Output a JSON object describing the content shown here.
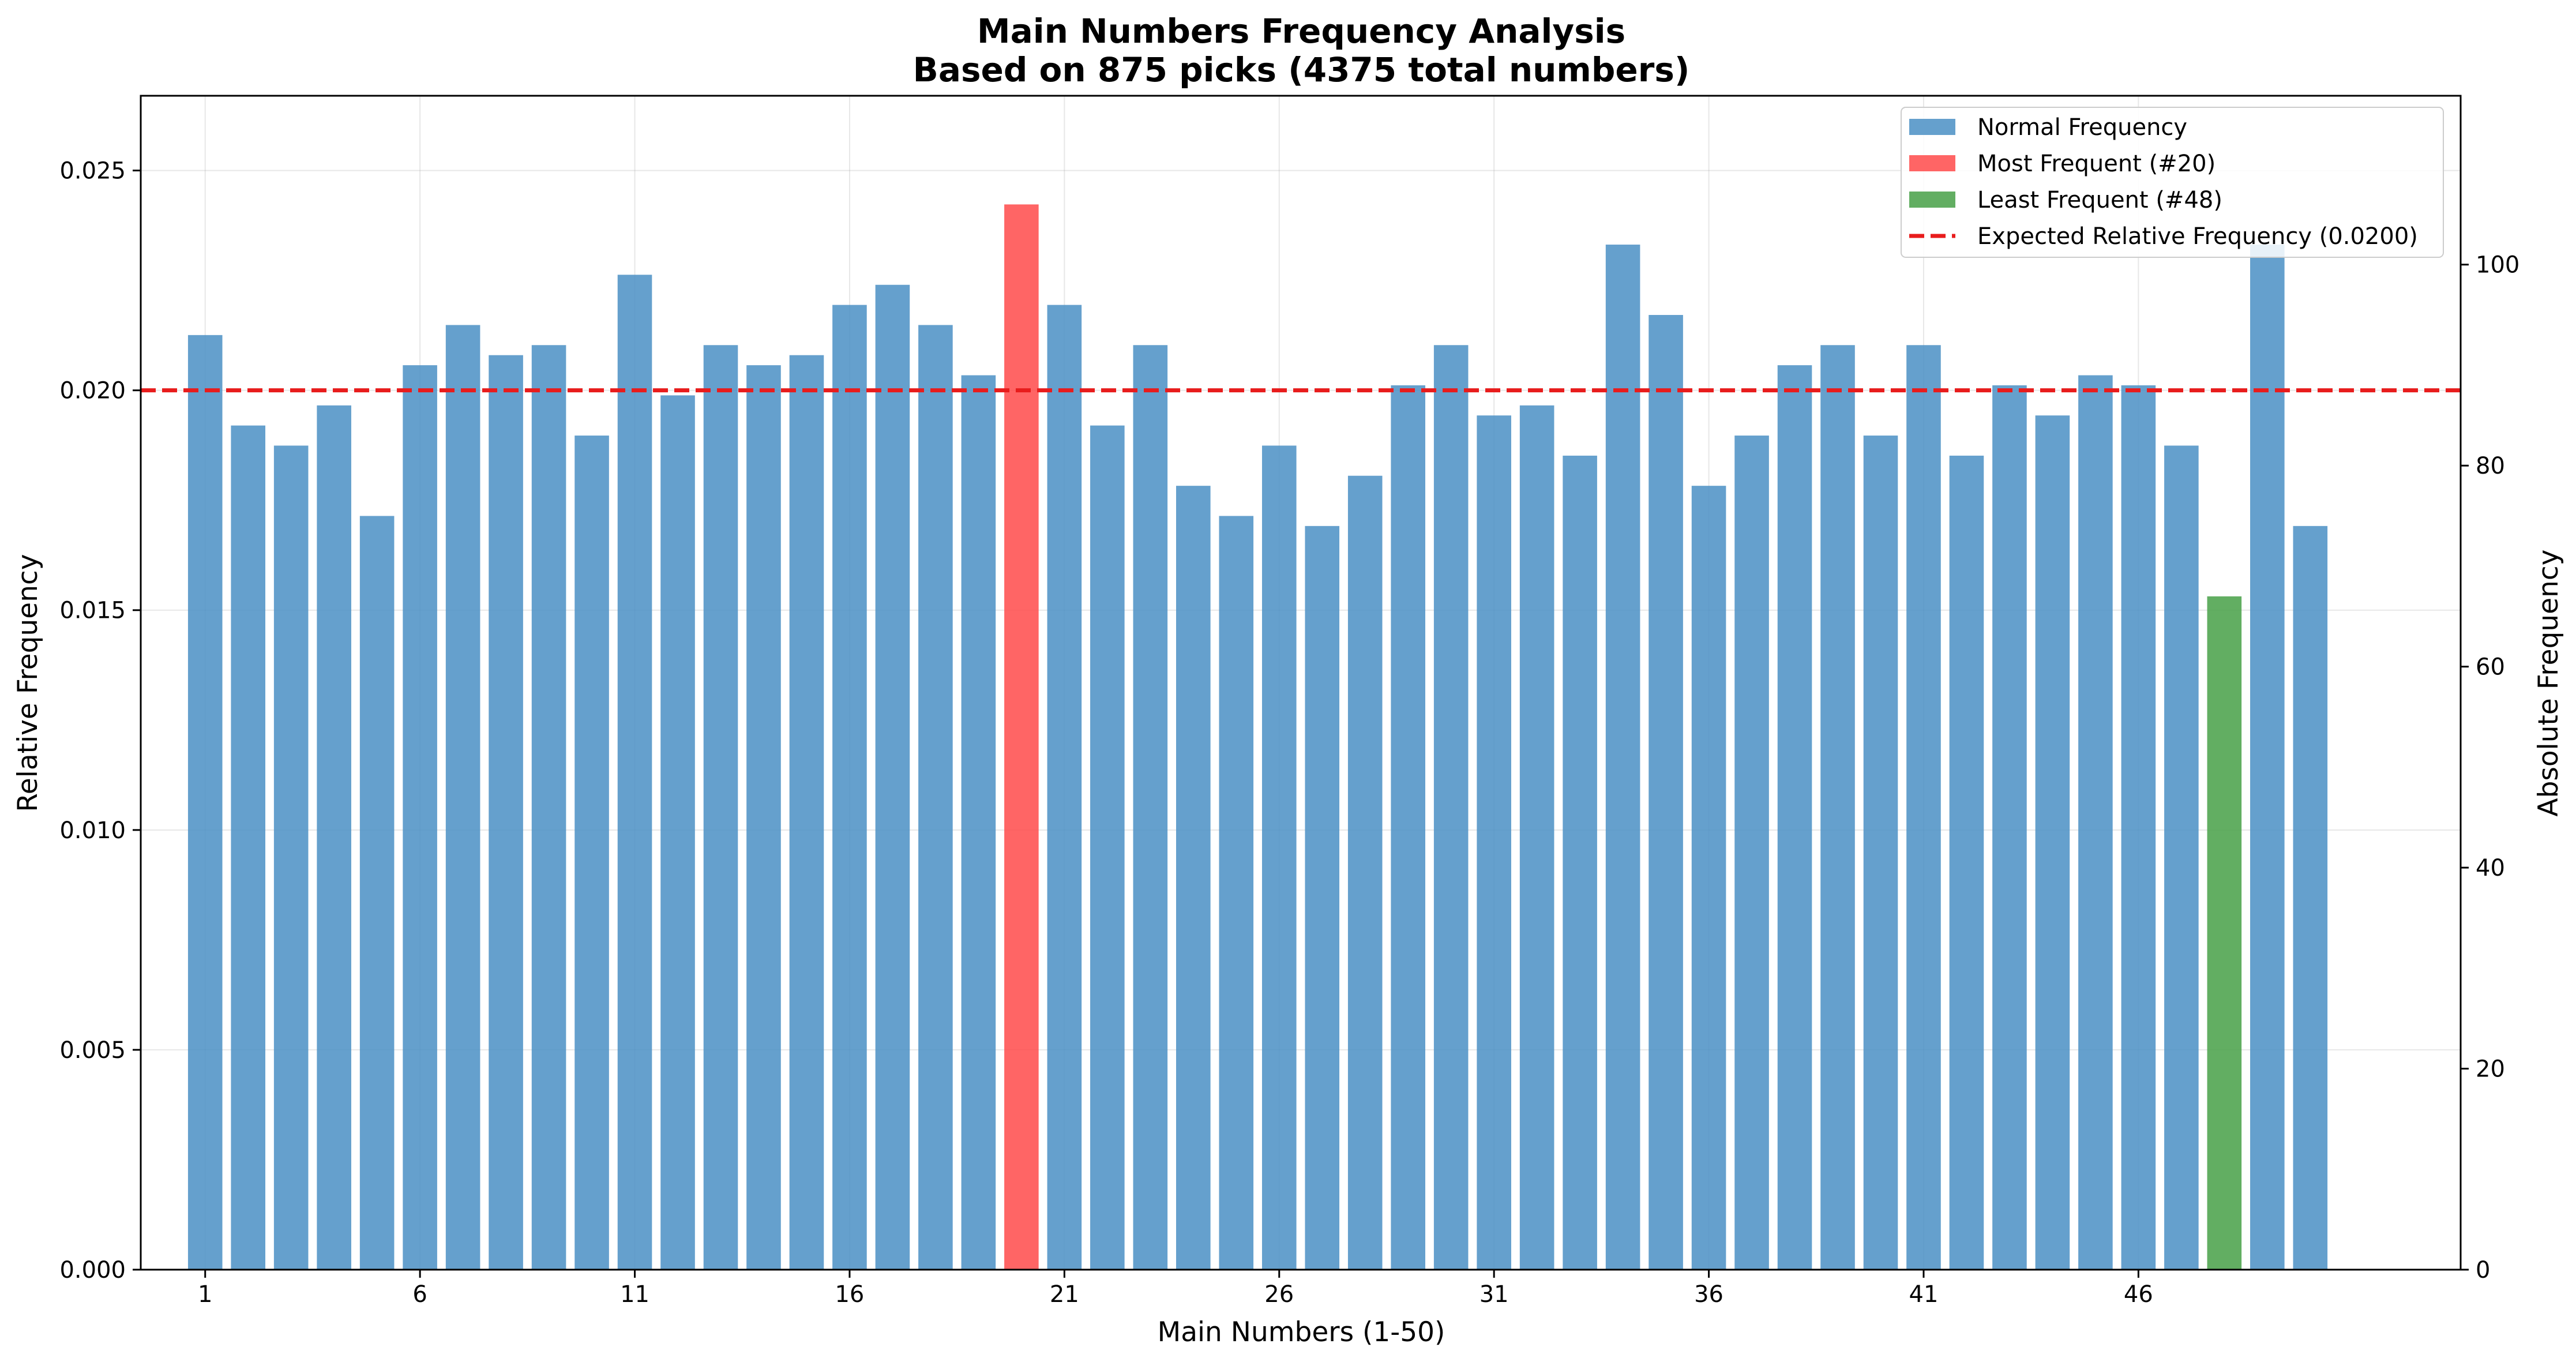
{
  "chart_data": {
    "type": "bar",
    "title": "Main Numbers Frequency Analysis",
    "subtitle": "Based on 875 picks (4375 total numbers)",
    "xlabel": "Main Numbers (1-50)",
    "ylabel": "Relative Frequency",
    "y2label": "Absolute Frequency",
    "ylim": [
      0,
      0.0267
    ],
    "y2lim": [
      0,
      116.8
    ],
    "xlim": [
      -0.5,
      53.5
    ],
    "x_ticks": [
      1,
      6,
      11,
      16,
      21,
      26,
      31,
      36,
      41,
      46
    ],
    "y_ticks": [
      "0.000",
      "0.005",
      "0.010",
      "0.015",
      "0.020",
      "0.025"
    ],
    "y2_ticks": [
      0,
      20,
      40,
      60,
      80,
      100
    ],
    "grid": true,
    "legend_position": "top-right",
    "categories": [
      1,
      2,
      3,
      4,
      5,
      6,
      7,
      8,
      9,
      10,
      11,
      12,
      13,
      14,
      15,
      16,
      17,
      18,
      19,
      20,
      21,
      22,
      23,
      24,
      25,
      26,
      27,
      28,
      29,
      30,
      31,
      32,
      33,
      34,
      35,
      36,
      37,
      38,
      39,
      40,
      41,
      42,
      43,
      44,
      45,
      46,
      47,
      48,
      49,
      50
    ],
    "absolute_values": [
      93,
      84,
      82,
      86,
      75,
      90,
      94,
      91,
      92,
      83,
      99,
      87,
      92,
      90,
      91,
      96,
      98,
      94,
      89,
      106,
      96,
      84,
      92,
      78,
      75,
      82,
      74,
      79,
      88,
      92,
      85,
      86,
      81,
      102,
      95,
      78,
      83,
      90,
      92,
      83,
      92,
      81,
      88,
      85,
      89,
      88,
      82,
      67,
      102,
      74
    ],
    "total_numbers": 4375,
    "expected_relative_frequency": 0.02,
    "most_frequent": 20,
    "least_frequent": 48,
    "colors": {
      "normal": "#4a8fc4",
      "most": "#ff4a4a",
      "least": "#47a047",
      "expected": "#e81c1c"
    },
    "legend": [
      {
        "label": "Normal Frequency",
        "kind": "normal"
      },
      {
        "label": "Most Frequent (#20)",
        "kind": "most"
      },
      {
        "label": "Least Frequent (#48)",
        "kind": "least"
      },
      {
        "label": "Expected Relative Frequency (0.0200)",
        "kind": "expected"
      }
    ]
  }
}
